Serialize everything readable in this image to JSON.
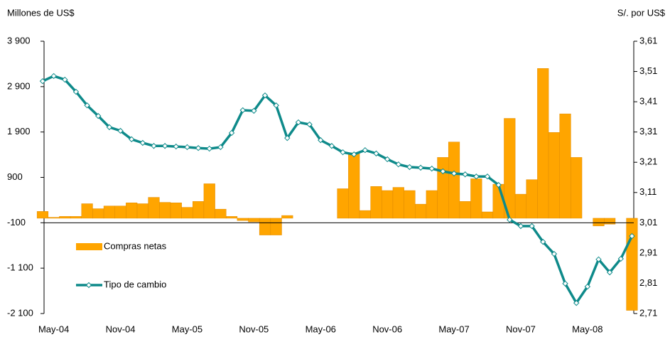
{
  "chart_data": {
    "type": "bar-line",
    "y_label": "Millones de US$",
    "y2_label": "S/. por US$",
    "categories": [
      null,
      "May-04",
      null,
      null,
      null,
      null,
      null,
      "Nov-04",
      null,
      null,
      null,
      null,
      null,
      "May-05",
      null,
      null,
      null,
      null,
      null,
      "Nov-05",
      null,
      null,
      null,
      null,
      null,
      "May-06",
      null,
      null,
      null,
      null,
      null,
      "Nov-06",
      null,
      null,
      null,
      null,
      null,
      "May-07",
      null,
      null,
      null,
      null,
      null,
      "Nov-07",
      null,
      null,
      null,
      null,
      null,
      "May-08",
      null,
      null,
      null,
      null
    ],
    "series": [
      {
        "name": "Compras netas",
        "type": "bar",
        "color": "#ffa500",
        "values": [
          150,
          20,
          40,
          40,
          320,
          210,
          270,
          270,
          340,
          320,
          460,
          350,
          340,
          240,
          370,
          760,
          200,
          40,
          -50,
          -80,
          -370,
          -370,
          60,
          0,
          0,
          0,
          0,
          650,
          1440,
          170,
          700,
          610,
          680,
          610,
          310,
          610,
          1340,
          1680,
          370,
          870,
          140,
          750,
          2200,
          530,
          850,
          3300,
          1890,
          2300,
          1340,
          0,
          -170,
          -130,
          0,
          -2030
        ]
      },
      {
        "name": "Tipo de cambio",
        "type": "line",
        "axis": "y2",
        "color": "#0e8a8a",
        "values": [
          3.478,
          3.495,
          3.483,
          3.443,
          3.398,
          3.363,
          3.326,
          3.314,
          3.286,
          3.274,
          3.264,
          3.264,
          3.262,
          3.26,
          3.257,
          3.255,
          3.26,
          3.307,
          3.382,
          3.38,
          3.431,
          3.398,
          3.29,
          3.342,
          3.335,
          3.283,
          3.264,
          3.243,
          3.236,
          3.25,
          3.239,
          3.22,
          3.203,
          3.194,
          3.192,
          3.189,
          3.18,
          3.173,
          3.17,
          3.163,
          3.163,
          3.135,
          3.02,
          2.999,
          2.999,
          2.947,
          2.907,
          2.809,
          2.745,
          2.799,
          2.889,
          2.846,
          2.891,
          2.966
        ]
      }
    ],
    "ylim": [
      -2100,
      3900
    ],
    "yticks": [
      {
        "value": -2100,
        "label": "-2 100"
      },
      {
        "value": -1100,
        "label": "-1 100"
      },
      -100,
      900,
      {
        "value": 1900,
        "label": "1 900"
      },
      {
        "value": 2900,
        "label": "2 900"
      },
      {
        "value": 3900,
        "label": "3 900"
      }
    ],
    "y2lim": [
      2.71,
      3.61
    ],
    "y2ticks": [
      {
        "value": 2.71,
        "label": "2,71"
      },
      {
        "value": 2.81,
        "label": "2,81"
      },
      {
        "value": 2.91,
        "label": "2,91"
      },
      {
        "value": 3.01,
        "label": "3,01"
      },
      {
        "value": 3.11,
        "label": "3,11"
      },
      {
        "value": 3.21,
        "label": "3,21"
      },
      {
        "value": 3.31,
        "label": "3,31"
      },
      {
        "value": 3.41,
        "label": "3,41"
      },
      {
        "value": 3.51,
        "label": "3,51"
      },
      {
        "value": 3.61,
        "label": "3,61"
      }
    ]
  }
}
